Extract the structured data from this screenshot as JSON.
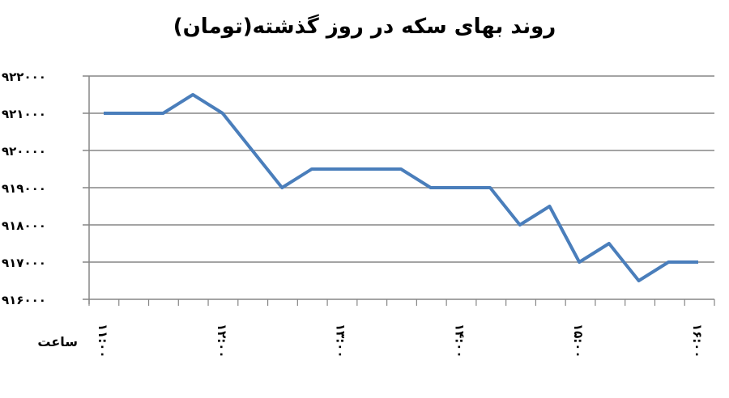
{
  "chart_data": {
    "type": "line",
    "title": "روند بهای سکه در روز گذشته(تومان)",
    "xlabel": "ساعت",
    "ylabel": "",
    "x_tick_labels": [
      "۱۱:۰۰",
      "۱۲:۰۰",
      "۱۳:۰۰",
      "۱۴:۰۰",
      "۱۵:۰۰",
      "۱۶:۰۰"
    ],
    "y_tick_labels": [
      "۹۱۶۰۰۰",
      "۹۱۷۰۰۰",
      "۹۱۸۰۰۰",
      "۹۱۹۰۰۰",
      "۹۲۰۰۰۰",
      "۹۲۱۰۰۰",
      "۹۲۲۰۰۰"
    ],
    "ylim": [
      916000,
      922000
    ],
    "grid": true,
    "line_color": "#4a7ebb",
    "x": [
      "11:00",
      "11:15",
      "11:30",
      "11:45",
      "12:00",
      "12:15",
      "12:30",
      "12:45",
      "13:00",
      "13:15",
      "13:30",
      "13:45",
      "14:00",
      "14:15",
      "14:30",
      "14:45",
      "15:00",
      "15:15",
      "15:30",
      "15:45",
      "16:00"
    ],
    "values": [
      921000,
      921000,
      921000,
      921500,
      921000,
      920000,
      919000,
      919500,
      919500,
      919500,
      919500,
      919000,
      919000,
      919000,
      918000,
      918500,
      917000,
      917500,
      916500,
      917000,
      917000
    ]
  }
}
